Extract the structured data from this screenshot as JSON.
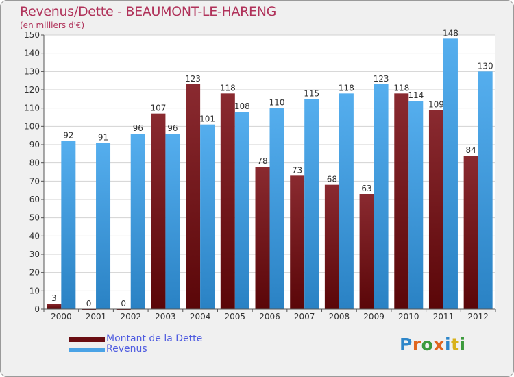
{
  "chart_data": {
    "type": "bar",
    "title": "Revenus/Dette - BEAUMONT-LE-HARENG",
    "subtitle": "(en milliers d'€)",
    "categories": [
      "2000",
      "2001",
      "2002",
      "2003",
      "2004",
      "2005",
      "2006",
      "2007",
      "2008",
      "2009",
      "2010",
      "2011",
      "2012"
    ],
    "series": [
      {
        "name": "Montant de la Dette",
        "values": [
          3,
          0,
          0,
          107,
          123,
          118,
          78,
          73,
          68,
          63,
          118,
          109,
          84
        ],
        "color": "#7a1a22"
      },
      {
        "name": "Revenus",
        "values": [
          92,
          91,
          96,
          96,
          101,
          108,
          110,
          115,
          118,
          123,
          114,
          148,
          130
        ],
        "color": "#4aa3e6"
      }
    ],
    "ylim": [
      0,
      150
    ],
    "yticks": [
      0,
      10,
      20,
      30,
      40,
      50,
      60,
      70,
      80,
      90,
      100,
      110,
      120,
      130,
      140,
      150
    ],
    "grid": true,
    "legend": "bottom-left"
  },
  "logo_text": [
    "P",
    "r",
    "o",
    "x",
    "i",
    "t",
    "i"
  ],
  "logo_colors": [
    "#2e86c9",
    "#e0651e",
    "#3c9a3c",
    "#e0651e",
    "#2e86c9",
    "#d8b21c",
    "#3c9a3c"
  ]
}
